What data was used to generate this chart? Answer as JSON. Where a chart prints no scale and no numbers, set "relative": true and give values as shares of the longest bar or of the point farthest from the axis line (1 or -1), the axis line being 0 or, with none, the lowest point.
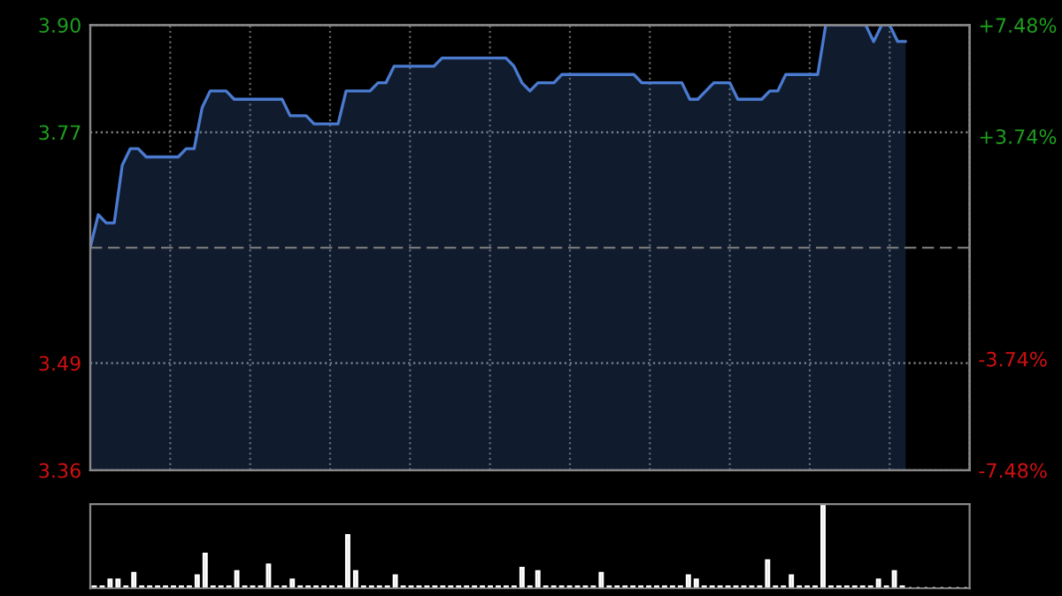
{
  "chart_data": [
    {
      "type": "area",
      "categories": [
        null,
        null,
        null,
        null,
        null,
        null,
        null,
        null,
        null,
        null,
        null,
        null,
        null,
        null,
        null,
        null,
        null,
        null,
        null,
        null,
        null,
        null,
        null,
        null,
        null,
        null,
        null,
        null,
        null,
        null,
        null,
        null,
        null,
        null,
        null,
        null,
        null,
        null,
        null,
        null,
        null,
        null,
        null,
        null,
        null,
        null,
        null,
        null,
        null,
        null,
        null,
        null,
        null,
        null,
        null,
        null,
        null,
        null,
        null,
        null,
        null,
        null,
        null,
        null,
        null,
        null,
        null,
        null,
        null,
        null,
        null,
        null,
        null,
        null,
        null,
        null,
        null,
        null,
        null,
        null,
        null,
        null,
        null,
        null,
        null,
        null,
        null,
        null,
        null,
        null,
        null,
        null,
        null,
        null,
        null,
        null,
        null,
        null,
        null,
        null,
        null,
        null,
        null,
        null,
        null,
        null,
        null,
        null,
        null,
        null,
        null
      ],
      "series": [
        {
          "color": "#4a7bd0",
          "values": [
            3.63,
            3.67,
            3.66,
            3.66,
            3.73,
            3.75,
            3.75,
            3.74,
            3.74,
            3.74,
            3.74,
            3.74,
            3.75,
            3.75,
            3.8,
            3.82,
            3.82,
            3.82,
            3.81,
            3.81,
            3.81,
            3.81,
            3.81,
            3.81,
            3.81,
            3.79,
            3.79,
            3.79,
            3.78,
            3.78,
            3.78,
            3.78,
            3.82,
            3.82,
            3.82,
            3.82,
            3.83,
            3.83,
            3.85,
            3.85,
            3.85,
            3.85,
            3.85,
            3.85,
            3.86,
            3.86,
            3.86,
            3.86,
            3.86,
            3.86,
            3.86,
            3.86,
            3.86,
            3.85,
            3.83,
            3.82,
            3.83,
            3.83,
            3.83,
            3.84,
            3.84,
            3.84,
            3.84,
            3.84,
            3.84,
            3.84,
            3.84,
            3.84,
            3.84,
            3.83,
            3.83,
            3.83,
            3.83,
            3.83,
            3.83,
            3.81,
            3.81,
            3.82,
            3.83,
            3.83,
            3.83,
            3.81,
            3.81,
            3.81,
            3.81,
            3.82,
            3.82,
            3.84,
            3.84,
            3.84,
            3.84,
            3.84,
            3.9,
            3.9,
            3.9,
            3.9,
            3.9,
            3.9,
            3.88,
            3.9,
            3.9,
            3.88,
            3.88,
            null,
            null,
            null,
            null,
            null,
            null,
            null,
            null
          ]
        }
      ],
      "ylim": [
        3.36,
        3.9
      ],
      "yticks": [
        {
          "value": 3.36,
          "label": "3.36"
        },
        {
          "value": 3.49,
          "label": "3.49"
        },
        {
          "value": 3.77,
          "label": "3.77"
        },
        {
          "value": 3.9,
          "label": "3.90"
        }
      ],
      "y2lim": [
        -7.48,
        7.48
      ],
      "y2ticks": [
        {
          "value": -7.48,
          "label": "-7.48%"
        },
        {
          "value": -3.74,
          "label": "-3.74%"
        },
        {
          "value": 3.74,
          "label": "+3.74%"
        },
        {
          "value": 7.48,
          "label": "+7.48%"
        }
      ],
      "ref_lines": [
        {
          "axis": "y",
          "value": 3.63,
          "color": "#777777",
          "line_style": "dashed"
        }
      ],
      "grid": true,
      "tick_labels": "y"
    },
    {
      "type": "bar",
      "relative": true,
      "color": "#999999",
      "tick_labels": false,
      "categories": [
        null,
        null,
        null,
        null,
        null,
        null,
        null,
        null,
        null,
        null,
        null,
        null,
        null,
        null,
        null,
        null,
        null,
        null,
        null,
        null,
        null,
        null,
        null,
        null,
        null,
        null,
        null,
        null,
        null,
        null,
        null,
        null,
        null,
        null,
        null,
        null,
        null,
        null,
        null,
        null,
        null,
        null,
        null,
        null,
        null,
        null,
        null,
        null,
        null,
        null,
        null,
        null,
        null,
        null,
        null,
        null,
        null,
        null,
        null,
        null,
        null,
        null,
        null,
        null,
        null,
        null,
        null,
        null,
        null,
        null,
        null,
        null,
        null,
        null,
        null,
        null,
        null,
        null,
        null,
        null,
        null,
        null,
        null,
        null,
        null,
        null,
        null,
        null,
        null,
        null,
        null,
        null,
        null,
        null,
        null,
        null,
        null,
        null,
        null,
        null,
        null,
        null,
        null,
        null,
        null,
        null,
        null,
        null,
        null,
        null,
        null
      ],
      "values": [
        0.02,
        0.02,
        0.1,
        0.1,
        0.02,
        0.18,
        0.02,
        0.02,
        0.02,
        0.02,
        0.02,
        0.02,
        0.02,
        0.15,
        0.41,
        0.02,
        0.02,
        0.02,
        0.2,
        0.02,
        0.02,
        0.02,
        0.28,
        0.02,
        0.02,
        0.1,
        0.02,
        0.02,
        0.02,
        0.02,
        0.02,
        0.02,
        0.63,
        0.2,
        0.02,
        0.02,
        0.02,
        0.02,
        0.15,
        0.02,
        0.02,
        0.02,
        0.02,
        0.02,
        0.02,
        0.02,
        0.02,
        0.02,
        0.02,
        0.02,
        0.02,
        0.02,
        0.02,
        0.02,
        0.24,
        0.02,
        0.2,
        0.02,
        0.02,
        0.02,
        0.02,
        0.02,
        0.02,
        0.02,
        0.18,
        0.02,
        0.02,
        0.02,
        0.02,
        0.02,
        0.02,
        0.02,
        0.02,
        0.02,
        0.02,
        0.15,
        0.1,
        0.02,
        0.02,
        0.02,
        0.02,
        0.02,
        0.02,
        0.02,
        0.02,
        0.33,
        0.02,
        0.02,
        0.15,
        0.02,
        0.02,
        0.02,
        1.0,
        0.02,
        0.02,
        0.02,
        0.02,
        0.02,
        0.02,
        0.1,
        0.02,
        0.2,
        0.02,
        null,
        null,
        null,
        null,
        null,
        null,
        null,
        null
      ]
    }
  ]
}
